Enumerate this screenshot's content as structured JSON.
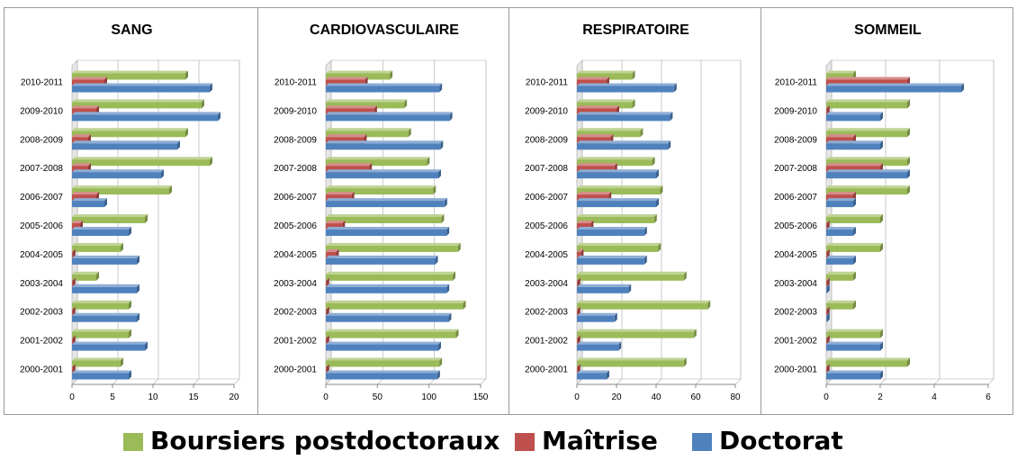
{
  "colors": {
    "post": "#9bbb59",
    "maitrise": "#c0504d",
    "doctorat": "#4f81bd"
  },
  "legend": {
    "post_label": "Boursiers postdoctoraux",
    "maitrise_label": "Maîtrise",
    "doctorat_label": "Doctorat"
  },
  "chart_data": [
    {
      "type": "bar",
      "orientation": "horizontal",
      "title": "SANG",
      "categories": [
        "2000-2001",
        "2001-2002",
        "2002-2003",
        "2003-2004",
        "2004-2005",
        "2005-2006",
        "2006-2007",
        "2007-2008",
        "2008-2009",
        "2009-2010",
        "2010-2011"
      ],
      "series": [
        {
          "name": "Boursiers postdoctoraux",
          "values": [
            6,
            7,
            7,
            3,
            6,
            9,
            12,
            17,
            14,
            16,
            14
          ]
        },
        {
          "name": "Maîtrise",
          "values": [
            0,
            0,
            0,
            0,
            0,
            1,
            3,
            2,
            2,
            3,
            4
          ]
        },
        {
          "name": "Doctorat",
          "values": [
            7,
            9,
            8,
            8,
            8,
            7,
            4,
            11,
            13,
            18,
            17
          ]
        }
      ],
      "xlim": [
        0,
        20
      ],
      "ticks": [
        0,
        5,
        10,
        15,
        20
      ],
      "grid": true,
      "legend": "bottom"
    },
    {
      "type": "bar",
      "orientation": "horizontal",
      "title": "CARDIOVASCULAIRE",
      "categories": [
        "2000-2001",
        "2001-2002",
        "2002-2003",
        "2003-2004",
        "2004-2005",
        "2005-2006",
        "2006-2007",
        "2007-2008",
        "2008-2009",
        "2009-2010",
        "2010-2011"
      ],
      "series": [
        {
          "name": "Boursiers postdoctoraux",
          "values": [
            110,
            126,
            133,
            123,
            128,
            112,
            104,
            98,
            80,
            76,
            62
          ]
        },
        {
          "name": "Maîtrise",
          "values": [
            0,
            0,
            0,
            0,
            10,
            16,
            25,
            42,
            37,
            47,
            38
          ]
        },
        {
          "name": "Doctorat",
          "values": [
            108,
            109,
            119,
            117,
            106,
            117,
            115,
            109,
            111,
            120,
            110
          ]
        }
      ],
      "xlim": [
        0,
        150
      ],
      "ticks": [
        0,
        50,
        100,
        150
      ],
      "grid": true,
      "legend": "bottom"
    },
    {
      "type": "bar",
      "orientation": "horizontal",
      "title": "RESPIRATOIRE",
      "categories": [
        "2000-2001",
        "2001-2002",
        "2002-2003",
        "2003-2004",
        "2004-2005",
        "2005-2006",
        "2006-2007",
        "2007-2008",
        "2008-2009",
        "2009-2010",
        "2010-2011"
      ],
      "series": [
        {
          "name": "Boursiers postdoctoraux",
          "values": [
            54,
            59,
            66,
            54,
            41,
            39,
            42,
            38,
            32,
            28,
            28
          ]
        },
        {
          "name": "Maîtrise",
          "values": [
            0,
            0,
            0,
            0,
            2,
            7,
            16,
            19,
            17,
            20,
            15
          ]
        },
        {
          "name": "Doctorat",
          "values": [
            15,
            21,
            19,
            26,
            34,
            34,
            40,
            40,
            46,
            47,
            49
          ]
        }
      ],
      "xlim": [
        0,
        80
      ],
      "ticks": [
        0,
        20,
        40,
        60,
        80
      ],
      "grid": true,
      "legend": "bottom"
    },
    {
      "type": "bar",
      "orientation": "horizontal",
      "title": "SOMMEIL",
      "categories": [
        "2000-2001",
        "2001-2002",
        "2002-2003",
        "2003-2004",
        "2004-2005",
        "2005-2006",
        "2006-2007",
        "2007-2008",
        "2008-2009",
        "2009-2010",
        "2010-2011"
      ],
      "series": [
        {
          "name": "Boursiers postdoctoraux",
          "values": [
            3,
            2,
            1,
            1,
            2,
            2,
            3,
            3,
            3,
            3,
            1
          ]
        },
        {
          "name": "Maîtrise",
          "values": [
            0,
            0,
            0,
            0,
            0,
            0,
            1,
            2,
            1,
            0,
            3
          ]
        },
        {
          "name": "Doctorat",
          "values": [
            2,
            2,
            0,
            0,
            1,
            1,
            1,
            3,
            2,
            2,
            5
          ]
        }
      ],
      "xlim": [
        0,
        6
      ],
      "ticks": [
        0,
        2,
        4,
        6
      ],
      "grid": true,
      "legend": "bottom"
    }
  ]
}
